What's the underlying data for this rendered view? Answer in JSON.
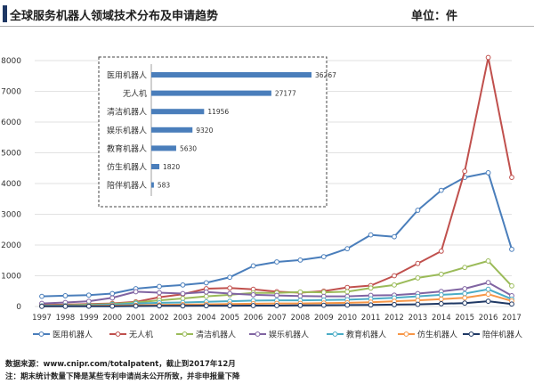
{
  "header": {
    "title": "全球服务机器人领域技术分布及申请趋势",
    "unit": "单位：件"
  },
  "chart_data": [
    {
      "type": "line",
      "x": [
        "1997",
        "1998",
        "1999",
        "2000",
        "2001",
        "2002",
        "2003",
        "2004",
        "2005",
        "2006",
        "2007",
        "2008",
        "2009",
        "2010",
        "2011",
        "2012",
        "2013",
        "2014",
        "2015",
        "2016",
        "2017"
      ],
      "ylim": [
        0,
        8000
      ],
      "yticks": [
        0,
        1000,
        2000,
        3000,
        4000,
        5000,
        6000,
        7000,
        8000
      ],
      "grid": true,
      "legend_position": "bottom",
      "series": [
        {
          "name": "医用机器人",
          "color": "#4a7ebb",
          "values": [
            330,
            350,
            370,
            420,
            580,
            650,
            700,
            770,
            950,
            1320,
            1450,
            1510,
            1620,
            1880,
            2330,
            2270,
            3130,
            3780,
            4200,
            4350,
            1860
          ]
        },
        {
          "name": "无人机",
          "color": "#c0504d",
          "values": [
            50,
            60,
            80,
            100,
            150,
            300,
            400,
            580,
            600,
            560,
            480,
            450,
            500,
            620,
            680,
            1000,
            1400,
            1800,
            4400,
            8100,
            4200
          ]
        },
        {
          "name": "清洁机器人",
          "color": "#9bbb59",
          "values": [
            30,
            40,
            60,
            80,
            130,
            200,
            260,
            330,
            380,
            440,
            440,
            470,
            460,
            480,
            600,
            700,
            930,
            1050,
            1270,
            1480,
            670
          ]
        },
        {
          "name": "娱乐机器人",
          "color": "#8064a2",
          "values": [
            100,
            130,
            170,
            280,
            480,
            450,
            420,
            470,
            420,
            380,
            360,
            340,
            330,
            330,
            360,
            370,
            420,
            490,
            580,
            780,
            350
          ]
        },
        {
          "name": "教育机器人",
          "color": "#4bacc6",
          "values": [
            20,
            30,
            40,
            60,
            100,
            120,
            130,
            150,
            170,
            190,
            200,
            200,
            210,
            220,
            250,
            280,
            330,
            380,
            420,
            560,
            240
          ]
        },
        {
          "name": "仿生机器人",
          "color": "#f79646",
          "values": [
            10,
            15,
            20,
            30,
            40,
            50,
            60,
            70,
            80,
            90,
            100,
            100,
            110,
            120,
            140,
            170,
            200,
            240,
            280,
            400,
            180
          ]
        },
        {
          "name": "陪伴机器人",
          "color": "#1f3864",
          "values": [
            5,
            5,
            8,
            10,
            15,
            20,
            20,
            25,
            25,
            30,
            30,
            35,
            40,
            45,
            50,
            60,
            70,
            90,
            110,
            170,
            80
          ]
        }
      ]
    },
    {
      "type": "bar",
      "orientation": "horizontal",
      "color": "#4a7ebb",
      "categories": [
        "医用机器人",
        "无人机",
        "清洁机器人",
        "娱乐机器人",
        "教育机器人",
        "仿生机器人",
        "陪伴机器人"
      ],
      "values": [
        36267,
        27177,
        11956,
        9320,
        5630,
        1820,
        583
      ]
    }
  ],
  "source": "数据来源：www.cnipr.com/totalpatent，截止到2017年12月",
  "note": "注：期末统计数量下降是某些专利申请尚未公开所致，并非申报量下降"
}
